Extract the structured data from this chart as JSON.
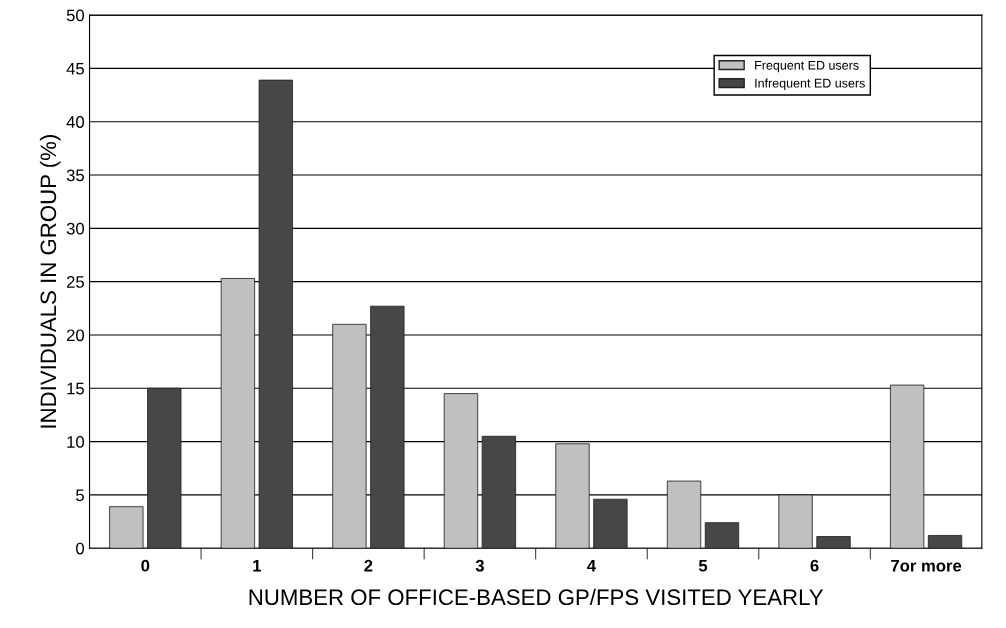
{
  "chart_data": {
    "type": "bar",
    "xlabel": "NUMBER OF OFFICE-BASED GP/FPS VISITED YEARLY",
    "ylabel": "INDIVIDUALS IN GROUP (%)",
    "categories": [
      "0",
      "1",
      "2",
      "3",
      "4",
      "5",
      "6",
      "7or more"
    ],
    "series": [
      {
        "name": "Frequent ED users",
        "color": "#c0c0c0",
        "values": [
          3.9,
          25.3,
          21.0,
          14.5,
          9.8,
          6.3,
          5.0,
          15.3
        ]
      },
      {
        "name": "Infrequent ED users",
        "color": "#474747",
        "values": [
          15.0,
          43.9,
          22.7,
          10.5,
          4.6,
          2.4,
          1.1,
          1.2
        ]
      }
    ],
    "ylim": [
      0,
      50
    ],
    "yticks": [
      0,
      5,
      10,
      15,
      20,
      25,
      30,
      35,
      40,
      45,
      50
    ],
    "grid": "y",
    "legend": "top right"
  }
}
